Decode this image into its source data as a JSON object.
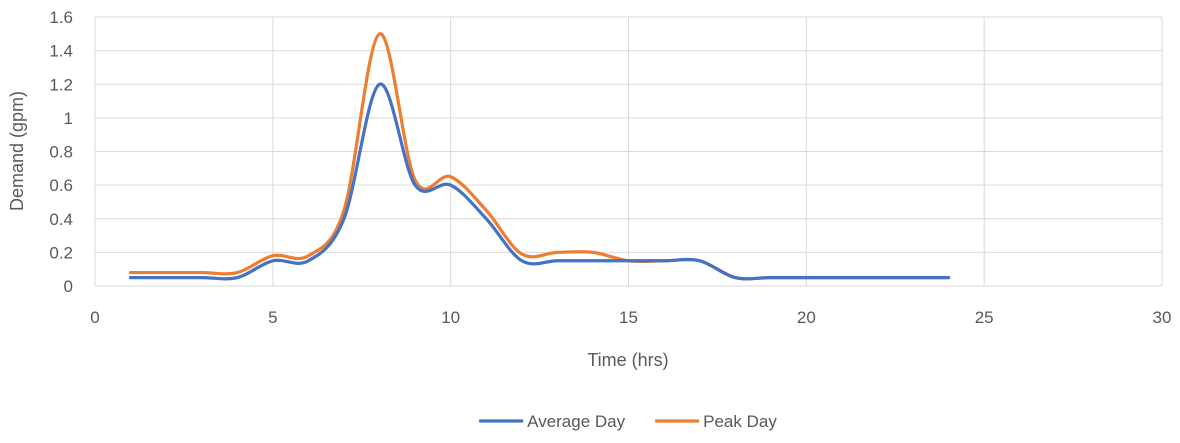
{
  "chart_data": {
    "type": "line",
    "title": "",
    "xlabel": "Time (hrs)",
    "ylabel": "Demand (gpm)",
    "xlim": [
      0,
      30
    ],
    "ylim": [
      0,
      1.6
    ],
    "x_ticks": [
      0,
      5,
      10,
      15,
      20,
      25,
      30
    ],
    "y_ticks": [
      0,
      0.2,
      0.4,
      0.6,
      0.8,
      1,
      1.2,
      1.4,
      1.6
    ],
    "x_tick_labels": [
      "0",
      "5",
      "10",
      "15",
      "20",
      "25",
      "30"
    ],
    "y_tick_labels": [
      "0",
      "0.2",
      "0.4",
      "0.6",
      "0.8",
      "1",
      "1.2",
      "1.4",
      "1.6"
    ],
    "grid": true,
    "smooth": true,
    "legend_position": "bottom-center",
    "x": [
      1,
      2,
      3,
      4,
      5,
      6,
      7,
      8,
      9,
      10,
      11,
      12,
      13,
      14,
      15,
      16,
      17,
      18,
      19,
      20,
      21,
      22,
      23,
      24
    ],
    "series": [
      {
        "name": "Average Day",
        "color": "#4472C4",
        "values": [
          0.05,
          0.05,
          0.05,
          0.05,
          0.15,
          0.15,
          0.4,
          1.2,
          0.6,
          0.6,
          0.4,
          0.15,
          0.15,
          0.15,
          0.15,
          0.15,
          0.15,
          0.05,
          0.05,
          0.05,
          0.05,
          0.05,
          0.05,
          0.05
        ]
      },
      {
        "name": "Peak Day",
        "color": "#ED7D31",
        "values": [
          0.08,
          0.08,
          0.08,
          0.08,
          0.18,
          0.18,
          0.45,
          1.5,
          0.63,
          0.65,
          0.45,
          0.19,
          0.2,
          0.2,
          0.15,
          0.15,
          0.15,
          0.05,
          0.05,
          0.05,
          0.05,
          0.05,
          0.05,
          0.05
        ]
      }
    ],
    "gridline_color": "#D9D9D9",
    "text_color": "#595959"
  }
}
